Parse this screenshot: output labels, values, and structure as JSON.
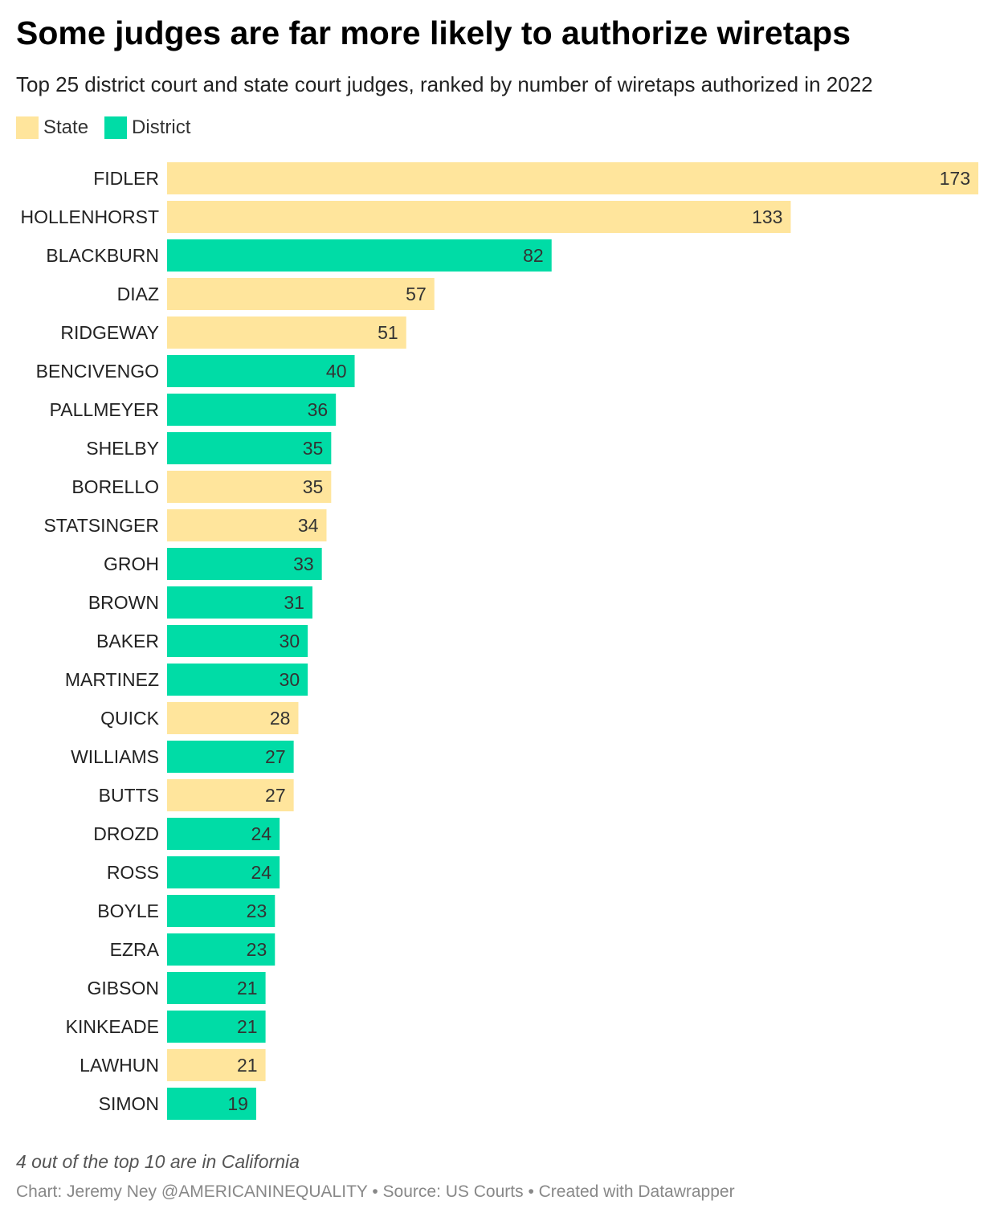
{
  "title": "Some judges are far more likely to authorize wiretaps",
  "subtitle": "Top 25 district court and state court judges, ranked by number of wiretaps authorized in 2022",
  "legend": [
    {
      "label": "State",
      "color": "#ffe59c"
    },
    {
      "label": "District",
      "color": "#00dca6"
    }
  ],
  "chart_data": {
    "type": "bar",
    "orientation": "horizontal",
    "title": "Some judges are far more likely to authorize wiretaps",
    "xlabel": "",
    "ylabel": "",
    "xlim": [
      0,
      173
    ],
    "grid": false,
    "legend_position": "top-left",
    "colors": {
      "State": "#ffe59c",
      "District": "#00dca6"
    },
    "categories": [
      "FIDLER",
      "HOLLENHORST",
      "BLACKBURN",
      "DIAZ",
      "RIDGEWAY",
      "BENCIVENGO",
      "PALLMEYER",
      "SHELBY",
      "BORELLO",
      "STATSINGER",
      "GROH",
      "BROWN",
      "BAKER",
      "MARTINEZ",
      "QUICK",
      "WILLIAMS",
      "BUTTS",
      "DROZD",
      "ROSS",
      "BOYLE",
      "EZRA",
      "GIBSON",
      "KINKEADE",
      "LAWHUN",
      "SIMON"
    ],
    "values": [
      173,
      133,
      82,
      57,
      51,
      40,
      36,
      35,
      35,
      34,
      33,
      31,
      30,
      30,
      28,
      27,
      27,
      24,
      24,
      23,
      23,
      21,
      21,
      21,
      19
    ],
    "court_type": [
      "State",
      "State",
      "District",
      "State",
      "State",
      "District",
      "District",
      "District",
      "State",
      "State",
      "District",
      "District",
      "District",
      "District",
      "State",
      "District",
      "State",
      "District",
      "District",
      "District",
      "District",
      "District",
      "District",
      "State",
      "District"
    ]
  },
  "note": "4 out of the top 10 are in California",
  "credits": "Chart: Jeremy Ney @AMERICANINEQUALITY • Source: US Courts • Created with Datawrapper"
}
